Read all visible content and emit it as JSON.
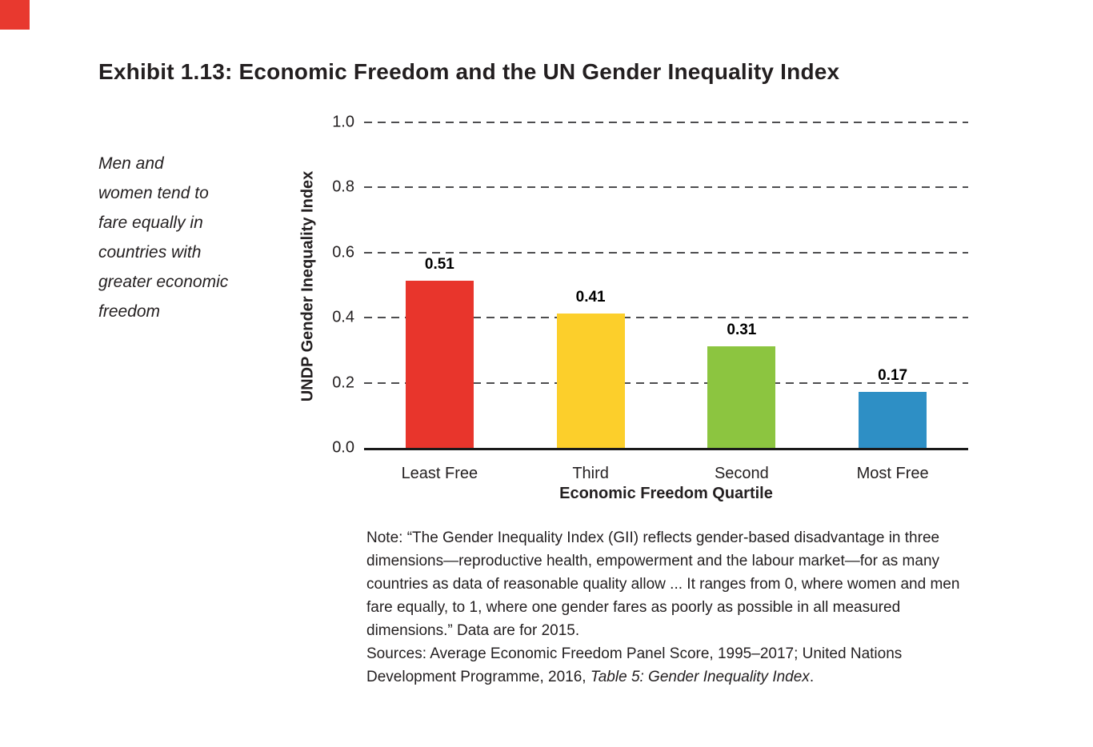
{
  "page": {
    "accent_color": "#e8392f",
    "title": "Exhibit 1.13: Economic Freedom and the UN Gender Inequality Index",
    "callout": "Men and\nwomen tend to\nfare equally in\ncountries with\ngreater economic\nfreedom"
  },
  "chart_data": {
    "type": "bar",
    "title": "Exhibit 1.13: Economic Freedom and the UN Gender Inequality Index",
    "categories": [
      "Least Free",
      "Third",
      "Second",
      "Most Free"
    ],
    "values": [
      0.51,
      0.41,
      0.31,
      0.17
    ],
    "value_labels": [
      "0.51",
      "0.41",
      "0.31",
      "0.17"
    ],
    "bar_colors": [
      "#e8352c",
      "#fccf2b",
      "#8cc540",
      "#2e8fc5"
    ],
    "xlabel": "Economic Freedom Quartile",
    "ylabel": "UNDP Gender Inequality Index",
    "ylim": [
      0,
      1
    ],
    "yticks": [
      0.0,
      0.2,
      0.4,
      0.6,
      0.8,
      1.0
    ],
    "ytick_labels": [
      "0.0",
      "0.2",
      "0.4",
      "0.6",
      "0.8",
      "1.0"
    ],
    "grid": "dashed horizontal gridlines at each y tick, solid black baseline at 0.0",
    "legend": "none"
  },
  "notes": {
    "note_text": "Note: “The Gender Inequality Index (GII) reflects gender-based disadvantage in three dimensions—reproductive health, empowerment and the labour market—for as many countries as data of reasonable quality allow ... It ranges from 0, where women and men fare equally, to 1, where one gender fares as poorly as possible in all measured dimensions.” Data are for 2015.",
    "sources_prefix": "Sources: Average Economic Freedom Panel Score, 1995–2017; United Nations Development Programme, 2016, ",
    "sources_italic": "Table 5: Gender Inequality Index",
    "sources_suffix": "."
  }
}
